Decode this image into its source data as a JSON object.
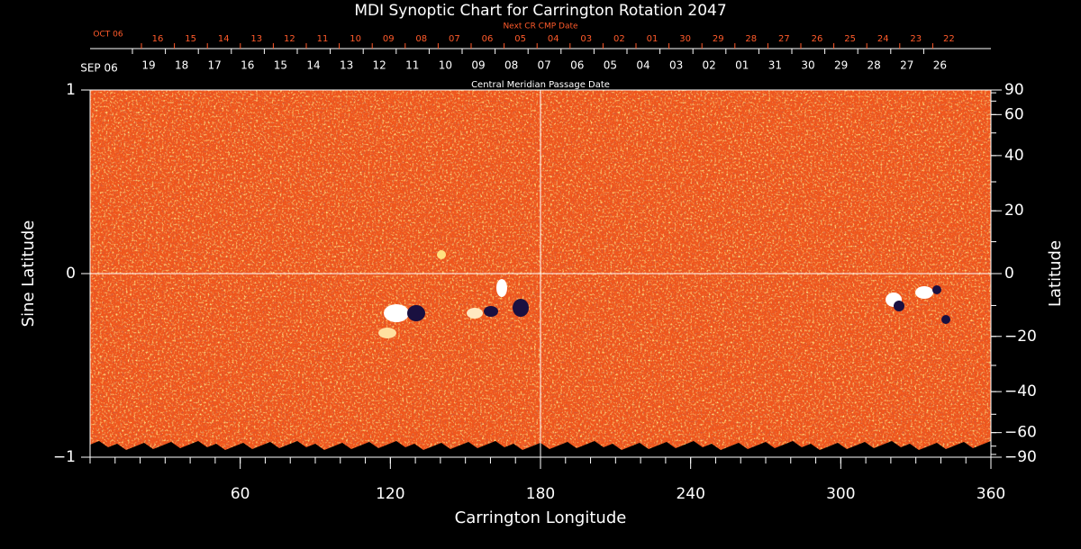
{
  "chart_data": {
    "type": "synoptic-map",
    "title": "MDI Synoptic Chart for Carrington Rotation 2047",
    "xlabel": "Carrington Longitude",
    "ylabel": "Sine Latitude",
    "y2label": "Latitude",
    "xlim": [
      0,
      360
    ],
    "xticks": [
      60,
      120,
      180,
      240,
      300,
      360
    ],
    "xminor": 10,
    "ylim": [
      1,
      -1
    ],
    "yticks": [
      {
        "value": 1,
        "label": "1"
      },
      0,
      {
        "value": -1,
        "label": "−1"
      }
    ],
    "y2scale": "sine",
    "y2lim": [
      90,
      -90
    ],
    "y2ticks": [
      90,
      60,
      40,
      20,
      0,
      {
        "value": -20,
        "label": "−20"
      },
      {
        "value": -40,
        "label": "−40"
      },
      {
        "value": -60,
        "label": "−60"
      },
      {
        "value": -90,
        "label": "−90"
      }
    ],
    "y2minor": 10,
    "reference_lines": {
      "x": 180,
      "y": 0
    },
    "color": "#f0561c",
    "next_cr_axis": {
      "label": "Next CR CMP Date",
      "start": "OCT 06",
      "color": "#ff5a2a",
      "days": [
        "16",
        "15",
        "14",
        "13",
        "12",
        "11",
        "10",
        "09",
        "08",
        "07",
        "06",
        "05",
        "04",
        "03",
        "02",
        "01",
        "30",
        "29",
        "28",
        "27",
        "26",
        "25",
        "24",
        "23",
        "22"
      ]
    },
    "cmp_axis": {
      "label": "Central Meridian Passage Date",
      "start": "SEP 06",
      "days": [
        "19",
        "18",
        "17",
        "16",
        "15",
        "14",
        "13",
        "12",
        "11",
        "10",
        "09",
        "08",
        "07",
        "06",
        "05",
        "04",
        "03",
        "02",
        "01",
        "31",
        "30",
        "29",
        "28",
        "27",
        "26"
      ]
    }
  }
}
